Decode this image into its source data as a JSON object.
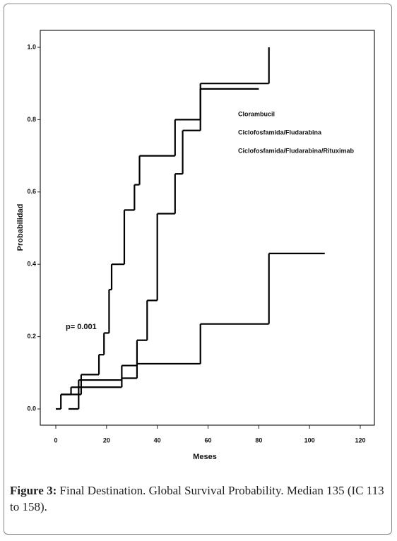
{
  "chart_data": {
    "type": "step",
    "annotation": "p= 0.001",
    "xlabel": "Meses",
    "ylabel": "Probabilidad",
    "xlim": [
      0,
      120
    ],
    "xticks": [
      0,
      20,
      40,
      60,
      80,
      100,
      120
    ],
    "ylim": [
      0,
      1
    ],
    "yticks": [
      {
        "value": 0,
        "label": "0.0"
      },
      {
        "value": 0.2,
        "label": "0.2"
      },
      {
        "value": 0.4,
        "label": "0.4"
      },
      {
        "value": 0.6,
        "label": "0.6"
      },
      {
        "value": 0.8,
        "label": "0.8"
      },
      {
        "value": 1,
        "label": "1.0"
      }
    ],
    "series": [
      {
        "name": "Clorambucil",
        "color": "#000000",
        "x": [
          0,
          2,
          10,
          17,
          19,
          21,
          22,
          27,
          31,
          33,
          47,
          57,
          84
        ],
        "values": [
          0,
          0.04,
          0.095,
          0.15,
          0.21,
          0.33,
          0.4,
          0.55,
          0.62,
          0.7,
          0.8,
          0.9,
          1
        ]
      },
      {
        "name": "Ciclofosfamida/Fludarabina",
        "color": "#000000",
        "x": [
          2,
          6,
          9,
          26,
          32,
          36,
          40,
          47,
          50,
          57,
          80
        ],
        "values": [
          0.04,
          0.06,
          0.08,
          0.12,
          0.19,
          0.3,
          0.54,
          0.65,
          0.77,
          0.885,
          0.885
        ]
      },
      {
        "name": "Ciclofosfamida/Fludarabina/Rituximab",
        "color": "#000000",
        "x": [
          5,
          9,
          26,
          32,
          57,
          84,
          106
        ],
        "values": [
          0,
          0.06,
          0.085,
          0.125,
          0.235,
          0.43,
          0.43
        ]
      }
    ]
  },
  "caption": {
    "label": "Figure 3:",
    "text": "Final Destination. Global Survival Probability. Median 135 (IC 113 to 158)."
  }
}
